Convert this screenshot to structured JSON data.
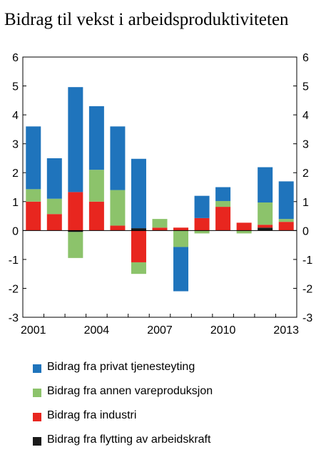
{
  "chart_data": {
    "type": "bar",
    "stacked": true,
    "title": "Bidrag til vekst i arbeidsproduktiviteten",
    "xlabel": "",
    "ylabel": "",
    "ylim": [
      -3,
      6
    ],
    "yticks": [
      -3,
      -2,
      -1,
      0,
      1,
      2,
      3,
      4,
      5,
      6
    ],
    "ytick_labels": [
      "-3",
      "-2",
      "-1",
      "0",
      "1",
      "2",
      "3",
      "4",
      "5",
      "6"
    ],
    "y_axes": "left and right",
    "grid": false,
    "legend_position": "bottom",
    "categories": [
      "2001",
      "2002",
      "2003",
      "2004",
      "2005",
      "2006",
      "2007",
      "2008",
      "2009",
      "2010",
      "2011",
      "2012",
      "2013"
    ],
    "xtick_labels": [
      "2001",
      "",
      "",
      "2004",
      "",
      "",
      "2007",
      "",
      "",
      "2010",
      "",
      "",
      "2013"
    ],
    "series": [
      {
        "name": "Bidrag fra flytting av arbeidskraft",
        "color": "#1a1a1a",
        "values": [
          0,
          0,
          -0.05,
          0,
          0,
          0.08,
          0,
          0,
          0,
          0,
          0,
          0.1,
          0
        ]
      },
      {
        "name": "Bidrag fra industri",
        "color": "#e8261f",
        "values": [
          1.0,
          0.57,
          1.33,
          1.0,
          0.17,
          -1.1,
          0.1,
          0.1,
          0.43,
          0.82,
          0.27,
          0.1,
          0.3
        ]
      },
      {
        "name": "Bidrag fra annen vareproduksjon",
        "color": "#8cc36b",
        "values": [
          0.43,
          0.53,
          -0.9,
          1.1,
          1.23,
          -0.4,
          0.3,
          -0.57,
          -0.1,
          0.2,
          -0.1,
          0.77,
          0.1
        ]
      },
      {
        "name": "Bidrag fra privat tjenesteyting",
        "color": "#1f74bc",
        "values": [
          2.17,
          1.4,
          3.63,
          2.2,
          2.2,
          2.4,
          0,
          -1.53,
          0.77,
          0.48,
          0,
          1.22,
          1.3
        ]
      }
    ],
    "legend_order": [
      "Bidrag fra privat tjenesteyting",
      "Bidrag fra annen vareproduksjon",
      "Bidrag fra industri",
      "Bidrag fra flytting av arbeidskraft"
    ]
  }
}
